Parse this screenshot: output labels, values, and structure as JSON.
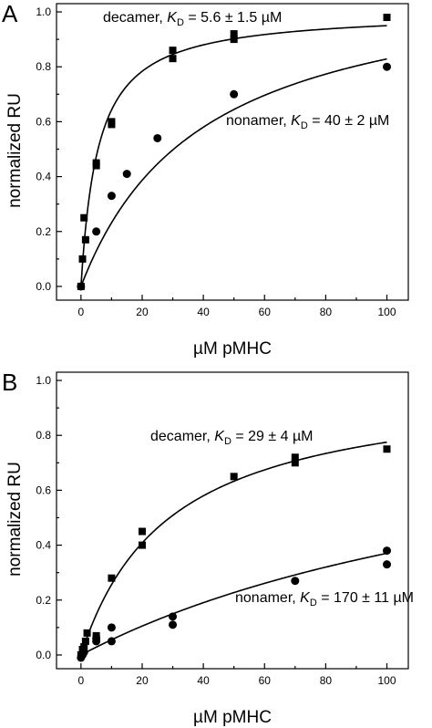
{
  "chart_data": [
    {
      "panel": "A",
      "type": "scatter",
      "xlabel": "µM pMHC",
      "ylabel": "normalized RU",
      "xlim": [
        -8,
        107
      ],
      "ylim": [
        -0.05,
        1.03
      ],
      "xticks": [
        "0",
        "20",
        "40",
        "60",
        "80",
        "100"
      ],
      "yticks": [
        "0.0",
        "0.2",
        "0.4",
        "0.6",
        "0.8",
        "1.0"
      ],
      "grid": false,
      "annotations": [
        {
          "series": "decamer",
          "prefix": "decamer, ",
          "k": "K",
          "sub": "D",
          "suffix": " = 5.6 ± 1.5 µM"
        },
        {
          "series": "nonamer",
          "prefix": "nonamer, ",
          "k": "K",
          "sub": "D",
          "suffix": " = 40 ± 2 µM"
        }
      ],
      "series": [
        {
          "marker": "square",
          "x": [
            0,
            0.5,
            1,
            1.5,
            5,
            5,
            10,
            10,
            30,
            30,
            50,
            50,
            100
          ],
          "y": [
            0,
            0.1,
            0.25,
            0.17,
            0.44,
            0.45,
            0.59,
            0.6,
            0.86,
            0.83,
            0.9,
            0.92,
            0.98
          ],
          "fit": {
            "model": "langmuir",
            "bmax": 1.003,
            "kd": 5.6
          }
        },
        {
          "marker": "circle",
          "x": [
            0,
            5,
            10,
            15,
            25,
            50,
            100
          ],
          "y": [
            0,
            0.2,
            0.33,
            0.41,
            0.54,
            0.7,
            0.8
          ],
          "fit": {
            "model": "langmuir",
            "bmax": 1.16,
            "kd": 40
          }
        }
      ]
    },
    {
      "panel": "B",
      "type": "scatter",
      "xlabel": "µM pMHC",
      "ylabel": "normalized RU",
      "xlim": [
        -8,
        107
      ],
      "ylim": [
        -0.05,
        1.03
      ],
      "xticks": [
        "0",
        "20",
        "40",
        "60",
        "80",
        "100"
      ],
      "yticks": [
        "0.0",
        "0.2",
        "0.4",
        "0.6",
        "0.8",
        "1.0"
      ],
      "grid": false,
      "annotations": [
        {
          "series": "decamer",
          "prefix": "decamer, ",
          "k": "K",
          "sub": "D",
          "suffix": " = 29 ± 4 µM"
        },
        {
          "series": "nonamer",
          "prefix": "nonamer, ",
          "k": "K",
          "sub": "D",
          "suffix": " = 170 ± 11 µM"
        }
      ],
      "series": [
        {
          "marker": "square",
          "x": [
            0,
            0.5,
            1,
            1.5,
            2,
            5,
            5,
            10,
            20,
            20,
            50,
            70,
            70,
            100
          ],
          "y": [
            0,
            0.02,
            0.03,
            0.05,
            0.08,
            0.07,
            0.06,
            0.28,
            0.4,
            0.45,
            0.65,
            0.7,
            0.72,
            0.75
          ],
          "fit": {
            "model": "langmuir",
            "bmax": 1.0,
            "kd": 29
          }
        },
        {
          "marker": "circle",
          "x": [
            0,
            0.5,
            1,
            5,
            5,
            10,
            10,
            30,
            30,
            70,
            100,
            100
          ],
          "y": [
            -0.01,
            0,
            0.01,
            0.05,
            0.06,
            0.05,
            0.1,
            0.11,
            0.14,
            0.27,
            0.33,
            0.38
          ],
          "fit": {
            "model": "langmuir",
            "bmax": 1.0,
            "kd": 170
          }
        }
      ]
    }
  ]
}
